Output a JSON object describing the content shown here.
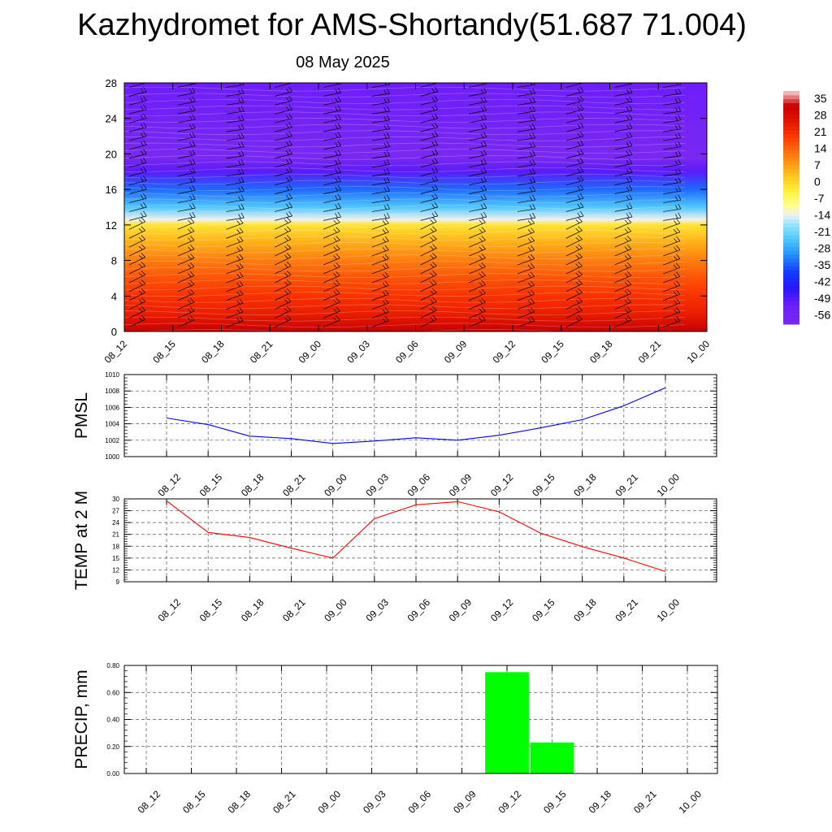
{
  "title": "Kazhydromet for AMS-Shortandy(51.687 71.004)",
  "subtitle": "08 May 2025",
  "time_labels": [
    "08_12",
    "08_15",
    "08_18",
    "08_21",
    "09_00",
    "09_03",
    "09_06",
    "09_09",
    "09_12",
    "09_15",
    "09_18",
    "09_21",
    "10_00"
  ],
  "chart_data": [
    {
      "type": "heatmap",
      "ylim": [
        0,
        28
      ],
      "yticks": [
        "0",
        "4",
        "8",
        "12",
        "16",
        "20",
        "24",
        "28"
      ],
      "x": [
        "08_12",
        "08_15",
        "08_18",
        "08_21",
        "09_00",
        "09_03",
        "09_06",
        "09_09",
        "09_12",
        "09_15",
        "09_18",
        "09_21",
        "10_00"
      ],
      "colorbar_labels": [
        "35",
        "28",
        "21",
        "14",
        "7",
        "0",
        "-7",
        "-14",
        "-21",
        "-28",
        "-35",
        "-42",
        "-49",
        "-56"
      ],
      "colorbar_range": [
        -60,
        38
      ],
      "temperature_profile": [
        {
          "level": 0,
          "value": 32
        },
        {
          "level": 2,
          "value": 24
        },
        {
          "level": 4,
          "value": 20
        },
        {
          "level": 6,
          "value": 16
        },
        {
          "level": 8,
          "value": 11
        },
        {
          "level": 10,
          "value": 5
        },
        {
          "level": 12,
          "value": -2
        },
        {
          "level": 12.6,
          "value": -14
        },
        {
          "level": 14,
          "value": -24
        },
        {
          "level": 16,
          "value": -34
        },
        {
          "level": 18,
          "value": -50
        },
        {
          "level": 19.5,
          "value": -60
        },
        {
          "level": 22,
          "value": -58
        },
        {
          "level": 25,
          "value": -54
        },
        {
          "level": 28,
          "value": -52
        }
      ],
      "wind_barbs": "present"
    },
    {
      "type": "line",
      "ylabel": "PMSL",
      "ylim": [
        1000,
        1010
      ],
      "yticks": [
        "1000",
        "1002",
        "1004",
        "1006",
        "1008",
        "1010"
      ],
      "x": [
        "08_12",
        "08_15",
        "08_18",
        "08_21",
        "09_00",
        "09_03",
        "09_06",
        "09_09",
        "09_12",
        "09_15",
        "09_18",
        "09_21",
        "10_00"
      ],
      "series": [
        {
          "values": [
            1004.7,
            1003.9,
            1002.5,
            1002.2,
            1001.6,
            1001.9,
            1002.3,
            1002.0,
            1002.6,
            1003.5,
            1004.5,
            1006.2,
            1008.4
          ],
          "color": "#0000ff"
        }
      ]
    },
    {
      "type": "line",
      "ylabel": "TEMP at 2 M",
      "ylim": [
        9,
        30
      ],
      "yticks": [
        "9",
        "12",
        "15",
        "18",
        "21",
        "24",
        "27",
        "30"
      ],
      "x": [
        "08_12",
        "08_15",
        "08_18",
        "08_21",
        "09_00",
        "09_03",
        "09_06",
        "09_09",
        "09_12",
        "09_15",
        "09_18",
        "09_21",
        "10_00"
      ],
      "series": [
        {
          "values": [
            29.5,
            21.5,
            20.2,
            17.5,
            15.0,
            25.0,
            28.5,
            29.3,
            26.7,
            21.3,
            17.9,
            15.0,
            11.6
          ],
          "color": "#ff0000"
        }
      ]
    },
    {
      "type": "bar",
      "ylabel": "PRECIP, mm",
      "ylim": [
        0,
        0.8
      ],
      "yticks": [
        "0.00",
        "0.20",
        "0.40",
        "0.60",
        "0.80"
      ],
      "x": [
        "08_12",
        "08_15",
        "08_18",
        "08_21",
        "09_00",
        "09_03",
        "09_06",
        "09_09",
        "09_12",
        "09_15",
        "09_18",
        "09_21",
        "10_00"
      ],
      "series": [
        {
          "values": [
            0,
            0,
            0,
            0,
            0,
            0,
            0,
            0,
            0.75,
            0.23,
            0,
            0,
            0
          ],
          "color": "#00ff00"
        }
      ]
    }
  ]
}
